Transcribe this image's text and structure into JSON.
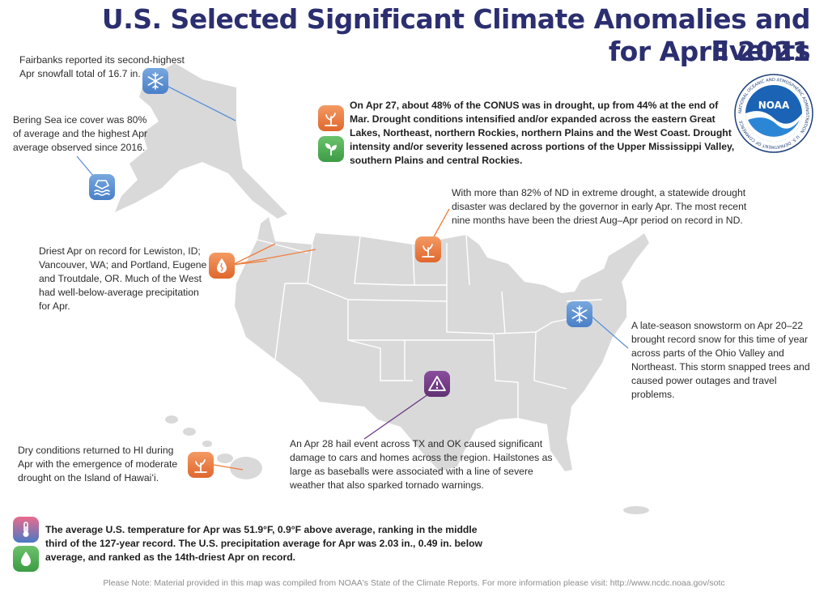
{
  "title": {
    "line1": "U.S. Selected Significant Climate Anomalies and Events",
    "line2": "for April 2021"
  },
  "colors": {
    "title": "#2b2e6f",
    "land": "#d9d9d9",
    "state_borders": "#ffffff",
    "callout_blue": "#5b8fd6",
    "callout_orange": "#ef7d3c",
    "callout_purple": "#6b3a86",
    "icon_blue": "#5b8fd6",
    "icon_orange": "#ef7d3c",
    "icon_green": "#49a84d",
    "icon_purple": "#6b3a86"
  },
  "annotations": {
    "fairbanks": "Fairbanks reported its second-highest Apr snowfall total of 16.7 in.",
    "bering": "Bering Sea ice cover was 80% of average and the highest Apr average observed since 2016.",
    "drought": "On Apr 27, about 48% of the CONUS was in drought, up from 44% at the end of Mar. Drought conditions intensified and/or expanded across the eastern Great Lakes, Northeast, northern Rockies, northern Plains and the West Coast. Drought intensity and/or severity lessened across portions of the Upper Mississippi Valley, southern Plains and central Rockies.",
    "nd": "With more than 82% of ND in extreme drought, a statewide drought disaster was declared by the governor in early Apr. The most recent nine months have been the driest Aug–Apr period on record in ND.",
    "northwest": "Driest Apr on record for Lewiston, ID; Vancouver, WA; and Portland, Eugene and Troutdale, OR. Much of the West had well-below-average precipitation for Apr.",
    "snowstorm": "A late-season snowstorm on Apr 20–22 brought record snow for this time of year across parts of the Ohio Valley and Northeast. This storm snapped trees and caused power outages and travel problems.",
    "hail": "An Apr 28 hail event across TX and OK caused significant damage to cars and homes across the region. Hailstones as large as baseballs were associated with a line of severe weather that also sparked tornado warnings.",
    "hawaii": "Dry conditions returned to HI during Apr with the emergence of moderate drought on the Island of Hawaiʻi.",
    "summary": "The average U.S. temperature for Apr was 51.9°F, 0.9°F above average, ranking in the middle third of the 127-year record. The U.S. precipitation average for Apr was 2.03 in., 0.49 in. below average, and ranked as the 14th-driest Apr on record."
  },
  "icons": {
    "fairbanks": "snowflake-icon",
    "bering": "sea-ice-icon",
    "drought_intensified": "drought-plant-icon",
    "drought_lessened": "growing-plant-icon",
    "nd": "drought-plant-icon",
    "northwest": "dry-drop-icon",
    "snowstorm": "snowflake-icon",
    "hail": "warning-icon",
    "hawaii": "drought-plant-icon",
    "temperature": "thermometer-icon",
    "precipitation": "water-drop-icon"
  },
  "logo": {
    "name": "NOAA",
    "ring_text": "NATIONAL OCEANIC AND ATMOSPHERIC ADMINISTRATION · U.S. DEPARTMENT OF COMMERCE"
  },
  "footer": {
    "note": "Please Note: Material provided in this map was compiled from NOAA's State of the Climate Reports. For more information please visit: http://www.ncdc.noaa.gov/sotc"
  }
}
